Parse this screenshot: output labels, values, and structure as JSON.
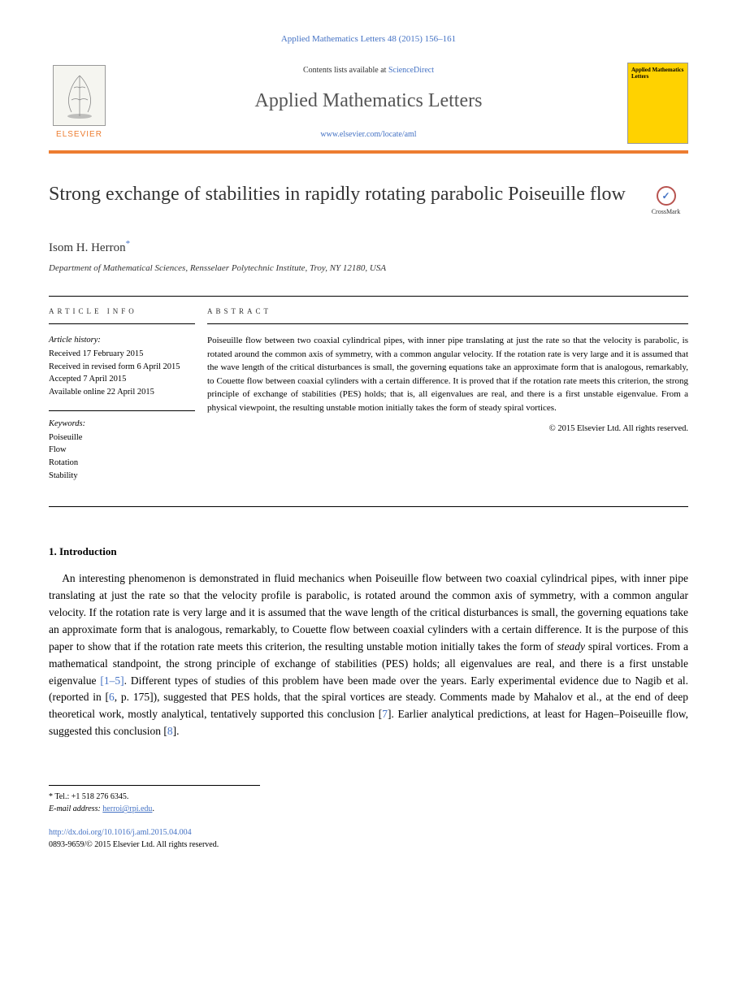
{
  "citation": "Applied Mathematics Letters 48 (2015) 156–161",
  "masthead": {
    "contents_prefix": "Contents lists available at ",
    "contents_link": "ScienceDirect",
    "journal_name": "Applied Mathematics Letters",
    "journal_url": "www.elsevier.com/locate/aml",
    "publisher": "ELSEVIER",
    "cover_title": "Applied Mathematics Letters"
  },
  "article": {
    "title": "Strong exchange of stabilities in rapidly rotating parabolic Poiseuille flow",
    "crossmark": "CrossMark",
    "author": "Isom H. Herron",
    "author_sup": "*",
    "affiliation": "Department of Mathematical Sciences, Rensselaer Polytechnic Institute, Troy, NY 12180, USA"
  },
  "info": {
    "label": "ARTICLE INFO",
    "history_label": "Article history:",
    "received": "Received 17 February 2015",
    "revised": "Received in revised form 6 April 2015",
    "accepted": "Accepted 7 April 2015",
    "online": "Available online 22 April 2015",
    "keywords_label": "Keywords:",
    "keywords": [
      "Poiseuille",
      "Flow",
      "Rotation",
      "Stability"
    ]
  },
  "abstract": {
    "label": "ABSTRACT",
    "text": "Poiseuille flow between two coaxial cylindrical pipes, with inner pipe translating at just the rate so that the velocity is parabolic, is rotated around the common axis of symmetry, with a common angular velocity. If the rotation rate is very large and it is assumed that the wave length of the critical disturbances is small, the governing equations take an approximate form that is analogous, remarkably, to Couette flow between coaxial cylinders with a certain difference. It is proved that if the rotation rate meets this criterion, the strong principle of exchange of stabilities (PES) holds; that is, all eigenvalues are real, and there is a first unstable eigenvalue. From a physical viewpoint, the resulting unstable motion initially takes the form of steady spiral vortices.",
    "copyright": "© 2015 Elsevier Ltd. All rights reserved."
  },
  "body": {
    "section_number": "1.",
    "section_title": "Introduction",
    "paragraph": "An interesting phenomenon is demonstrated in fluid mechanics when Poiseuille flow between two coaxial cylindrical pipes, with inner pipe translating at just the rate so that the velocity profile is parabolic, is rotated around the common axis of symmetry, with a common angular velocity. If the rotation rate is very large and it is assumed that the wave length of the critical disturbances is small, the governing equations take an approximate form that is analogous, remarkably, to Couette flow between coaxial cylinders with a certain difference. It is the purpose of this paper to show that if the rotation rate meets this criterion, the resulting unstable motion initially takes the form of steady spiral vortices. From a mathematical standpoint, the strong principle of exchange of stabilities (PES) holds; all eigenvalues are real, and there is a first unstable eigenvalue [1–5]. Different types of studies of this problem have been made over the years. Early experimental evidence due to Nagib et al. (reported in [6, p. 175]), suggested that PES holds, that the spiral vortices are steady. Comments made by Mahalov et al., at the end of deep theoretical work, mostly analytical, tentatively supported this conclusion [7]. Earlier analytical predictions, at least for Hagen–Poiseuille flow, suggested this conclusion [8]."
  },
  "footer": {
    "tel_label": "* Tel.: ",
    "tel": "+1 518 276 6345.",
    "email_label": "E-mail address: ",
    "email": "herroi@rpi.edu",
    "doi": "http://dx.doi.org/10.1016/j.aml.2015.04.004",
    "issn_copyright": "0893-9659/© 2015 Elsevier Ltd. All rights reserved."
  }
}
